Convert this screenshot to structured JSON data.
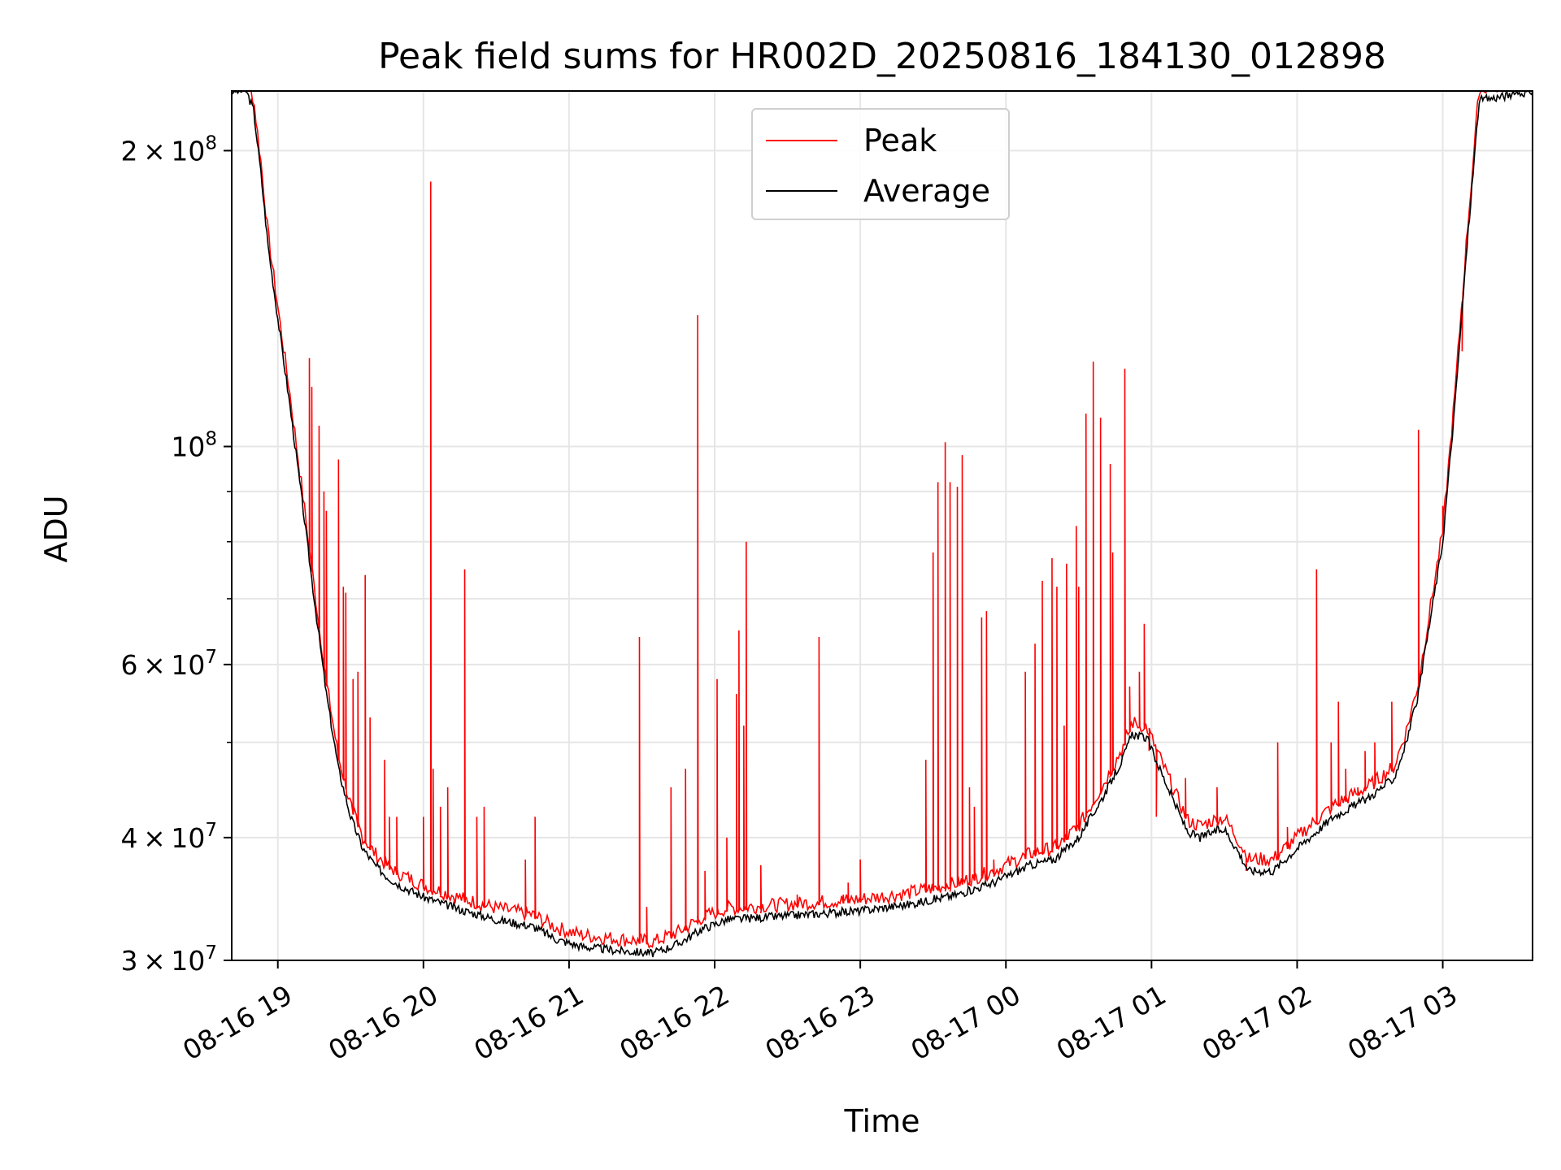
{
  "colors": {
    "peak": "#ff0000",
    "average": "#000000",
    "grid": "#e6e6e6",
    "axis": "#000000"
  },
  "chart_data": {
    "type": "line",
    "title": "Peak field sums for HR002D_20250816_184130_012898",
    "xlabel": "Time",
    "ylabel": "ADU",
    "y_scale": "log",
    "ylim": [
      30000000,
      230000000
    ],
    "xlim": [
      "2025-08-16 18:41",
      "2025-08-17 03:37"
    ],
    "grid": true,
    "legend": {
      "position": "top-center",
      "entries": [
        "Peak",
        "Average"
      ]
    },
    "x_ticks": [
      "08-16 19",
      "08-16 20",
      "08-16 21",
      "08-16 22",
      "08-16 23",
      "08-17 00",
      "08-17 01",
      "08-17 02",
      "08-17 03"
    ],
    "y_ticks": [
      {
        "value": 30000000,
        "mant": "3",
        "exp": "7"
      },
      {
        "value": 40000000,
        "mant": "4",
        "exp": "7"
      },
      {
        "value": 60000000,
        "mant": "6",
        "exp": "7"
      },
      {
        "value": 100000000,
        "mant": "",
        "exp": "8"
      },
      {
        "value": 200000000,
        "mant": "2",
        "exp": "8"
      }
    ],
    "y_minor_ticks": [
      50000000,
      70000000,
      80000000,
      90000000
    ],
    "series": [
      {
        "name": "Average",
        "x": [
          "2025-08-16 18:41",
          "2025-08-16 18:47",
          "2025-08-16 18:50",
          "2025-08-16 18:53",
          "2025-08-16 18:56",
          "2025-08-16 19:00",
          "2025-08-16 19:05",
          "2025-08-16 19:10",
          "2025-08-16 19:15",
          "2025-08-16 19:20",
          "2025-08-16 19:25",
          "2025-08-16 19:30",
          "2025-08-16 19:35",
          "2025-08-16 19:40",
          "2025-08-16 19:45",
          "2025-08-16 19:50",
          "2025-08-16 20:00",
          "2025-08-16 20:15",
          "2025-08-16 20:30",
          "2025-08-16 20:45",
          "2025-08-16 20:55",
          "2025-08-16 21:05",
          "2025-08-16 21:20",
          "2025-08-16 21:35",
          "2025-08-16 21:45",
          "2025-08-16 21:55",
          "2025-08-16 22:05",
          "2025-08-16 22:30",
          "2025-08-16 23:00",
          "2025-08-16 23:20",
          "2025-08-16 23:40",
          "2025-08-16 23:55",
          "2025-08-17 00:05",
          "2025-08-17 00:10",
          "2025-08-17 00:20",
          "2025-08-17 00:30",
          "2025-08-17 00:40",
          "2025-08-17 00:48",
          "2025-08-17 00:52",
          "2025-08-17 00:58",
          "2025-08-17 01:05",
          "2025-08-17 01:12",
          "2025-08-17 01:15",
          "2025-08-17 01:20",
          "2025-08-17 01:25",
          "2025-08-17 01:30",
          "2025-08-17 01:35",
          "2025-08-17 01:40",
          "2025-08-17 01:50",
          "2025-08-17 02:00",
          "2025-08-17 02:15",
          "2025-08-17 02:30",
          "2025-08-17 02:40",
          "2025-08-17 02:45",
          "2025-08-17 02:50",
          "2025-08-17 02:55",
          "2025-08-17 03:00",
          "2025-08-17 03:05",
          "2025-08-17 03:10",
          "2025-08-17 03:15",
          "2025-08-17 03:37"
        ],
        "values": [
          230000000,
          230000000,
          220000000,
          190000000,
          160000000,
          135000000,
          110000000,
          88000000,
          70000000,
          56000000,
          47000000,
          42000000,
          39000000,
          37500000,
          36500000,
          35800000,
          34800000,
          33800000,
          33000000,
          32500000,
          31500000,
          31000000,
          30700000,
          30500000,
          31200000,
          32300000,
          33000000,
          33300000,
          33700000,
          34200000,
          35000000,
          36000000,
          37000000,
          37500000,
          38000000,
          40000000,
          44000000,
          48000000,
          51000000,
          50500000,
          46000000,
          42000000,
          40500000,
          40000000,
          40500000,
          40800000,
          39000000,
          37000000,
          37000000,
          39000000,
          42000000,
          44000000,
          46000000,
          50000000,
          56000000,
          67000000,
          80000000,
          110000000,
          160000000,
          225000000,
          230000000
        ]
      },
      {
        "name": "Peak",
        "x": [
          "2025-08-16 19:13",
          "2025-08-16 19:14",
          "2025-08-16 19:17",
          "2025-08-16 19:19",
          "2025-08-16 19:20",
          "2025-08-16 19:25",
          "2025-08-16 19:27",
          "2025-08-16 19:28",
          "2025-08-16 19:31",
          "2025-08-16 19:33",
          "2025-08-16 19:36",
          "2025-08-16 19:38",
          "2025-08-16 19:44",
          "2025-08-16 19:46",
          "2025-08-16 19:49",
          "2025-08-16 20:00",
          "2025-08-16 20:03",
          "2025-08-16 20:04",
          "2025-08-16 20:07",
          "2025-08-16 20:10",
          "2025-08-16 20:17",
          "2025-08-16 20:22",
          "2025-08-16 20:25",
          "2025-08-16 20:42",
          "2025-08-16 20:46",
          "2025-08-16 21:29",
          "2025-08-16 21:32",
          "2025-08-16 21:42",
          "2025-08-16 21:48",
          "2025-08-16 21:53",
          "2025-08-16 21:56",
          "2025-08-16 22:01",
          "2025-08-16 22:05",
          "2025-08-16 22:09",
          "2025-08-16 22:10",
          "2025-08-16 22:12",
          "2025-08-16 22:13",
          "2025-08-16 22:19",
          "2025-08-16 22:34",
          "2025-08-16 22:43",
          "2025-08-16 22:53",
          "2025-08-16 22:55",
          "2025-08-16 23:00",
          "2025-08-16 23:27",
          "2025-08-16 23:30",
          "2025-08-16 23:32",
          "2025-08-16 23:35",
          "2025-08-16 23:37",
          "2025-08-16 23:40",
          "2025-08-16 23:42",
          "2025-08-16 23:45",
          "2025-08-16 23:47",
          "2025-08-16 23:50",
          "2025-08-16 23:52",
          "2025-08-16 23:55",
          "2025-08-17 00:08",
          "2025-08-17 00:12",
          "2025-08-17 00:15",
          "2025-08-17 00:19",
          "2025-08-17 00:21",
          "2025-08-17 00:24",
          "2025-08-17 00:25",
          "2025-08-17 00:29",
          "2025-08-17 00:30",
          "2025-08-17 00:33",
          "2025-08-17 00:36",
          "2025-08-17 00:39",
          "2025-08-17 00:43",
          "2025-08-17 00:44",
          "2025-08-17 00:49",
          "2025-08-17 00:51",
          "2025-08-17 00:55",
          "2025-08-17 00:57",
          "2025-08-17 00:59",
          "2025-08-17 01:02",
          "2025-08-17 01:14",
          "2025-08-17 01:27",
          "2025-08-17 01:39",
          "2025-08-17 01:52",
          "2025-08-17 01:56",
          "2025-08-17 02:08",
          "2025-08-17 02:14",
          "2025-08-17 02:17",
          "2025-08-17 02:20",
          "2025-08-17 02:25",
          "2025-08-17 02:28",
          "2025-08-17 02:32",
          "2025-08-17 02:39",
          "2025-08-17 02:50",
          "2025-08-17 03:00",
          "2025-08-17 03:08"
        ],
        "values": [
          123000000,
          115000000,
          105000000,
          90000000,
          86000000,
          97000000,
          72000000,
          71000000,
          58000000,
          59000000,
          74000000,
          53000000,
          48000000,
          42000000,
          42000000,
          42000000,
          186000000,
          47000000,
          43000000,
          45000000,
          75000000,
          42000000,
          43000000,
          38000000,
          42000000,
          64000000,
          34000000,
          45000000,
          47000000,
          136000000,
          37000000,
          58000000,
          40000000,
          56000000,
          65000000,
          52000000,
          80000000,
          37500000,
          35000000,
          64000000,
          35000000,
          36000000,
          38000000,
          48000000,
          78000000,
          92000000,
          101000000,
          92000000,
          91000000,
          98000000,
          45000000,
          43000000,
          67000000,
          68000000,
          38000000,
          59000000,
          63000000,
          73000000,
          77000000,
          72000000,
          52000000,
          76000000,
          83000000,
          72000000,
          108000000,
          122000000,
          107000000,
          96000000,
          78000000,
          120000000,
          57000000,
          59000000,
          66000000,
          49000000,
          42000000,
          46000000,
          45000000,
          37000000,
          50000000,
          41000000,
          75000000,
          50000000,
          55000000,
          47000000,
          45000000,
          49000000,
          50000000,
          55000000,
          104000000,
          87000000,
          125000000
        ]
      }
    ]
  }
}
